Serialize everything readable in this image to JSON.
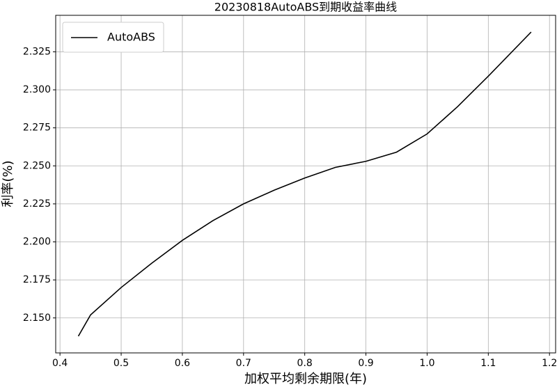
{
  "chart_data": {
    "type": "line",
    "title": "20230818AutoABS到期收益率曲线",
    "x_label": "加权平均剩余期限(年)",
    "y_label": "利率(%)",
    "x": [
      0.43,
      0.45,
      0.5,
      0.55,
      0.6,
      0.65,
      0.7,
      0.75,
      0.8,
      0.85,
      0.9,
      0.95,
      1.0,
      1.05,
      1.1,
      1.17
    ],
    "series": [
      {
        "name": "AutoABS",
        "color": "#000000",
        "values": [
          2.138,
          2.152,
          2.17,
          2.186,
          2.201,
          2.214,
          2.225,
          2.234,
          2.242,
          2.249,
          2.253,
          2.259,
          2.271,
          2.289,
          2.309,
          2.338
        ]
      }
    ],
    "xlim": [
      0.393,
      1.21
    ],
    "xticks": [
      0.4,
      0.5,
      0.6,
      0.7,
      0.8,
      0.9,
      {
        "value": 1,
        "label": "1.0"
      },
      1.1,
      1.2
    ],
    "ylim": [
      2.127,
      2.349
    ],
    "yticks": [
      {
        "value": 2.15,
        "label": "2.150"
      },
      2.175,
      {
        "value": 2.2,
        "label": "2.200"
      },
      2.225,
      {
        "value": 2.25,
        "label": "2.250"
      },
      2.275,
      {
        "value": 2.3,
        "label": "2.300"
      },
      2.325
    ],
    "grid": true,
    "legend": "upper-left"
  }
}
